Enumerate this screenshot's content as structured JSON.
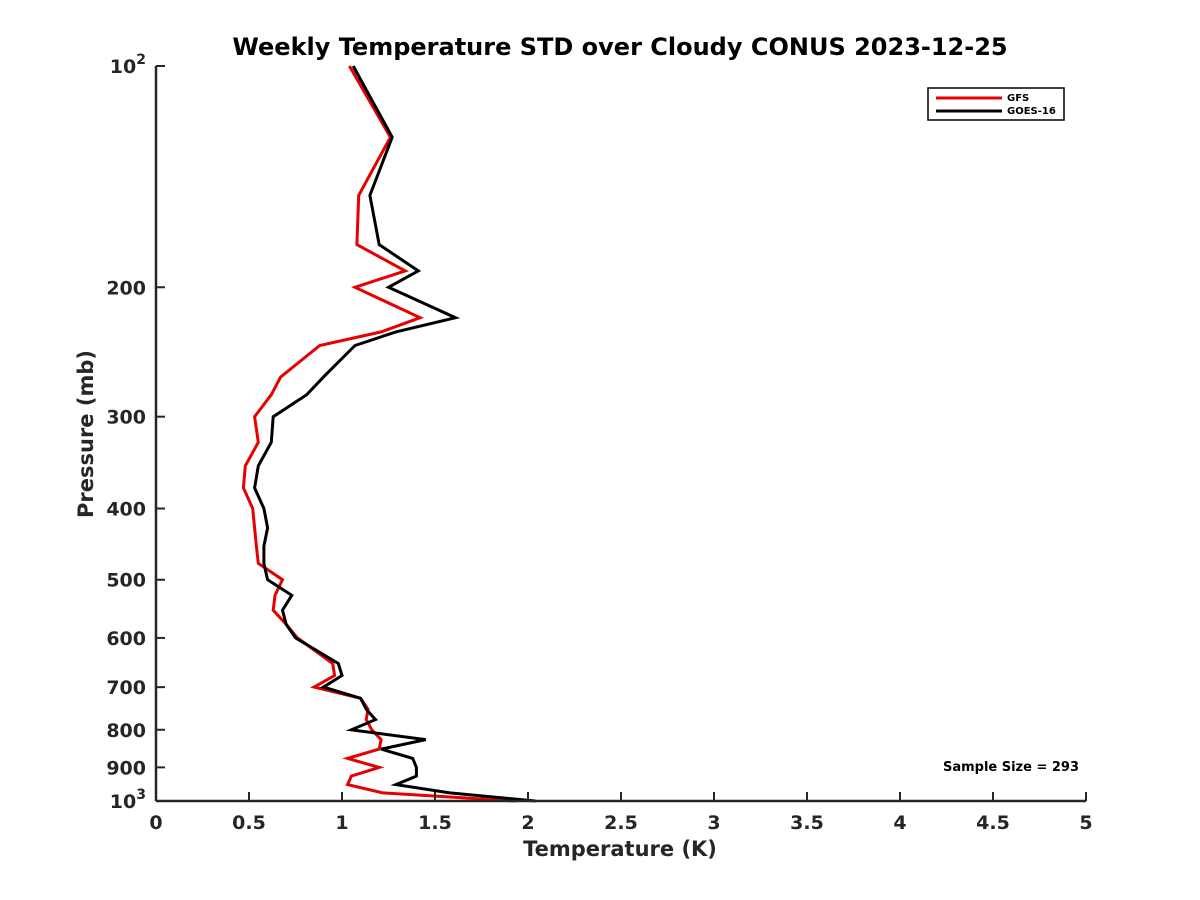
{
  "chart_data": {
    "type": "line",
    "title": "Weekly Temperature STD over Cloudy CONUS 2023-12-25",
    "xlabel": "Temperature (K)",
    "ylabel": "Pressure (mb)",
    "xlim": [
      0,
      5
    ],
    "ylim": [
      100,
      1000
    ],
    "y_scale": "log",
    "y_reversed": true,
    "xticks": [
      "0",
      "0.5",
      "1",
      "1.5",
      "2",
      "2.5",
      "3",
      "3.5",
      "4",
      "4.5",
      "5"
    ],
    "yticks": [
      {
        "value": 100,
        "base": "10",
        "exp": "2"
      },
      {
        "value": 200,
        "label": "200"
      },
      {
        "value": 300,
        "label": "300"
      },
      {
        "value": 400,
        "label": "400"
      },
      {
        "value": 500,
        "label": "500"
      },
      {
        "value": 600,
        "label": "600"
      },
      {
        "value": 700,
        "label": "700"
      },
      {
        "value": 800,
        "label": "800"
      },
      {
        "value": 900,
        "label": "900"
      },
      {
        "value": 1000,
        "base": "10",
        "exp": "3"
      }
    ],
    "grid": false,
    "legend_position": "top-right",
    "annotation": "Sample Size = 293",
    "series": [
      {
        "name": "GFS",
        "color": "#e60000",
        "points": [
          [
            1.04,
            100
          ],
          [
            1.26,
            125
          ],
          [
            1.09,
            150
          ],
          [
            1.08,
            175
          ],
          [
            1.34,
            190
          ],
          [
            1.07,
            200
          ],
          [
            1.42,
            220
          ],
          [
            1.21,
            230
          ],
          [
            0.88,
            240
          ],
          [
            0.67,
            265
          ],
          [
            0.62,
            280
          ],
          [
            0.53,
            300
          ],
          [
            0.55,
            325
          ],
          [
            0.48,
            350
          ],
          [
            0.47,
            375
          ],
          [
            0.52,
            400
          ],
          [
            0.53,
            425
          ],
          [
            0.54,
            450
          ],
          [
            0.55,
            475
          ],
          [
            0.68,
            500
          ],
          [
            0.64,
            525
          ],
          [
            0.63,
            550
          ],
          [
            0.7,
            575
          ],
          [
            0.76,
            600
          ],
          [
            0.95,
            650
          ],
          [
            0.96,
            675
          ],
          [
            0.85,
            700
          ],
          [
            1.1,
            725
          ],
          [
            1.14,
            750
          ],
          [
            1.13,
            775
          ],
          [
            1.16,
            800
          ],
          [
            1.21,
            825
          ],
          [
            1.2,
            850
          ],
          [
            1.03,
            875
          ],
          [
            1.2,
            900
          ],
          [
            1.05,
            925
          ],
          [
            1.03,
            950
          ],
          [
            1.22,
            975
          ],
          [
            1.93,
            1000
          ]
        ]
      },
      {
        "name": "GOES-16",
        "color": "#000000",
        "points": [
          [
            1.06,
            100
          ],
          [
            1.27,
            125
          ],
          [
            1.15,
            150
          ],
          [
            1.2,
            175
          ],
          [
            1.41,
            190
          ],
          [
            1.25,
            200
          ],
          [
            1.61,
            220
          ],
          [
            1.29,
            230
          ],
          [
            1.07,
            240
          ],
          [
            0.9,
            265
          ],
          [
            0.81,
            280
          ],
          [
            0.63,
            300
          ],
          [
            0.62,
            325
          ],
          [
            0.55,
            350
          ],
          [
            0.53,
            375
          ],
          [
            0.58,
            400
          ],
          [
            0.6,
            425
          ],
          [
            0.58,
            450
          ],
          [
            0.58,
            475
          ],
          [
            0.6,
            500
          ],
          [
            0.73,
            525
          ],
          [
            0.68,
            550
          ],
          [
            0.7,
            575
          ],
          [
            0.75,
            600
          ],
          [
            0.98,
            650
          ],
          [
            1.0,
            675
          ],
          [
            0.9,
            700
          ],
          [
            1.1,
            725
          ],
          [
            1.13,
            750
          ],
          [
            1.18,
            775
          ],
          [
            1.05,
            800
          ],
          [
            1.45,
            825
          ],
          [
            1.21,
            850
          ],
          [
            1.38,
            875
          ],
          [
            1.4,
            900
          ],
          [
            1.4,
            925
          ],
          [
            1.29,
            950
          ],
          [
            1.58,
            975
          ],
          [
            2.04,
            1000
          ]
        ]
      }
    ]
  }
}
